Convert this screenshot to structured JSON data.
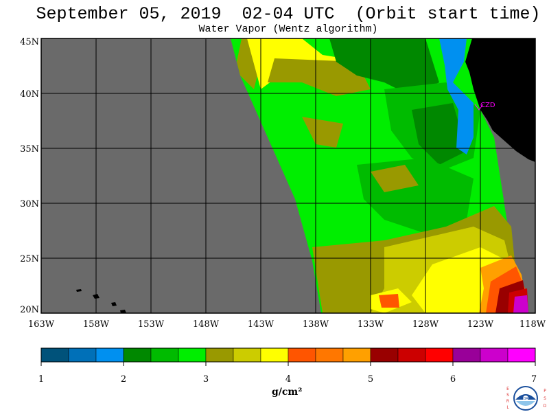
{
  "header": {
    "title": "September 05, 2019  02-04 UTC  (Orbit start time)",
    "subtitle": "Water Vapor (Wentz algorithm)"
  },
  "map": {
    "lat_labels": [
      "45N",
      "40N",
      "35N",
      "30N",
      "25N",
      "20N"
    ],
    "lon_labels": [
      "163W",
      "158W",
      "153W",
      "148W",
      "143W",
      "138W",
      "133W",
      "128W",
      "123W",
      "118W"
    ],
    "station_label": "CZD",
    "no_data_color": "#6a6a6a",
    "land_color": "#000000"
  },
  "colorbar": {
    "tick_labels": [
      "1",
      "2",
      "3",
      "4",
      "5",
      "6",
      "7"
    ],
    "units": "g/cm²",
    "colors": [
      "#00527a",
      "#0070b8",
      "#0090f0",
      "#008800",
      "#00bb00",
      "#00ee00",
      "#999900",
      "#cccc00",
      "#ffff00",
      "#ff5500",
      "#ff7700",
      "#ffa000",
      "#990000",
      "#cc0000",
      "#ff0000",
      "#990099",
      "#cc00cc",
      "#ff00ff"
    ]
  },
  "logo": {
    "left_letters": [
      "E",
      "S",
      "R",
      "L"
    ],
    "right_letters": [
      "P",
      "S",
      "D"
    ],
    "center_text": "NOAA"
  }
}
